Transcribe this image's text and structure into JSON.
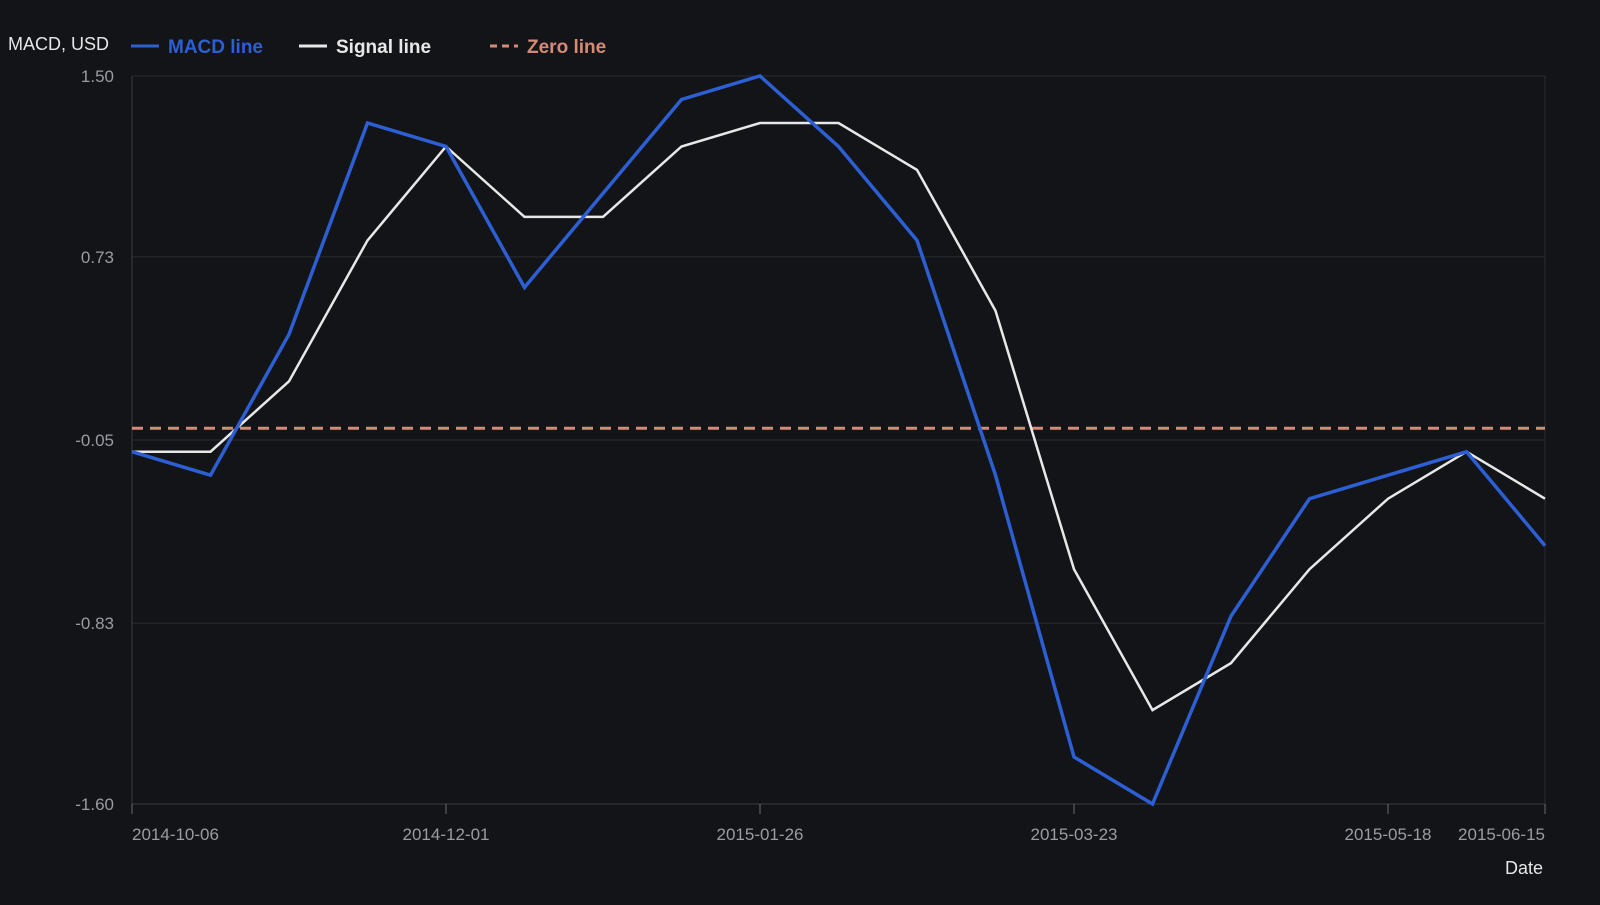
{
  "chart_data": {
    "type": "line",
    "title": "",
    "xlabel": "Date",
    "ylabel": "MACD, USD",
    "ylim": [
      -1.6,
      1.5
    ],
    "yticks": [
      "1.50",
      "0.73",
      "-0.05",
      "-0.83",
      "-1.60"
    ],
    "ytick_values": [
      1.5,
      0.73,
      -0.05,
      -0.83,
      -1.6
    ],
    "x": [
      "2014-10-06",
      "2014-10-20",
      "2014-11-03",
      "2014-11-17",
      "2014-12-01",
      "2014-12-15",
      "2014-12-29",
      "2015-01-12",
      "2015-01-26",
      "2015-02-09",
      "2015-02-23",
      "2015-03-09",
      "2015-03-23",
      "2015-04-06",
      "2015-04-20",
      "2015-05-04",
      "2015-05-18",
      "2015-06-01",
      "2015-06-15"
    ],
    "xticks": [
      "2014-10-06",
      "2014-12-01",
      "2015-01-26",
      "2015-03-23",
      "2015-05-18",
      "2015-06-15"
    ],
    "grid": true,
    "legend_position": "top-left",
    "series": [
      {
        "name": "MACD line",
        "color": "#2d5fd4",
        "style": "solid",
        "values": [
          -0.1,
          -0.2,
          0.4,
          1.3,
          1.2,
          0.6,
          1.0,
          1.4,
          1.5,
          1.2,
          0.8,
          -0.2,
          -1.4,
          -1.6,
          -0.8,
          -0.3,
          -0.2,
          -0.1,
          -0.5
        ]
      },
      {
        "name": "Signal line",
        "color": "#e8e8e8",
        "style": "solid",
        "values": [
          -0.1,
          -0.1,
          0.2,
          0.8,
          1.2,
          0.9,
          0.9,
          1.2,
          1.3,
          1.3,
          1.1,
          0.5,
          -0.6,
          -1.2,
          -1.0,
          -0.6,
          -0.3,
          -0.1,
          -0.3
        ]
      },
      {
        "name": "Zero line",
        "color": "#d58a78",
        "style": "dashed",
        "values": [
          0,
          0,
          0,
          0,
          0,
          0,
          0,
          0,
          0,
          0,
          0,
          0,
          0,
          0,
          0,
          0,
          0,
          0,
          0
        ]
      }
    ]
  }
}
